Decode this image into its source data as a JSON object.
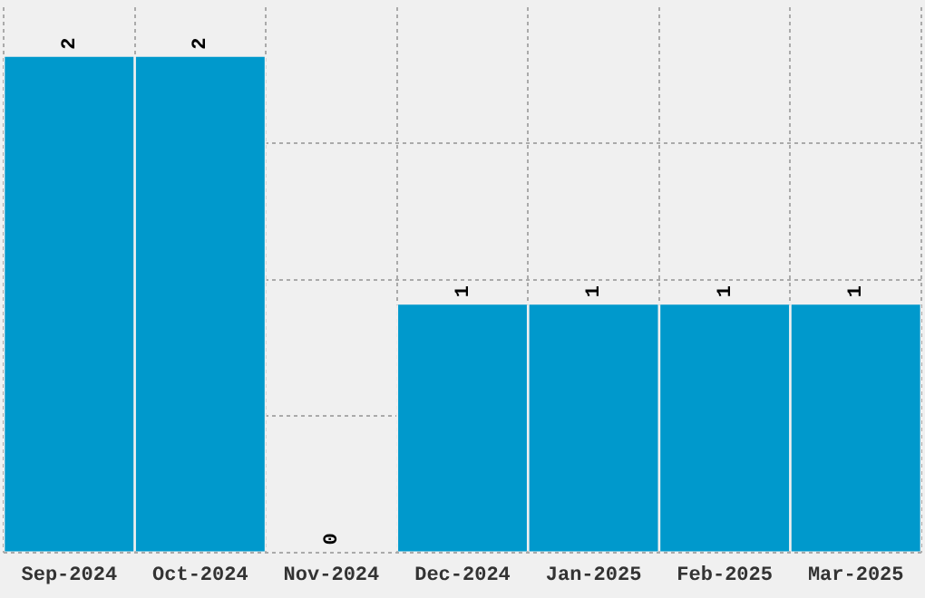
{
  "chart_data": {
    "type": "bar",
    "categories": [
      "Sep-2024",
      "Oct-2024",
      "Nov-2024",
      "Dec-2024",
      "Jan-2025",
      "Feb-2025",
      "Mar-2025"
    ],
    "values": [
      2,
      2,
      0,
      1,
      1,
      1,
      1
    ],
    "color": "#0099cc",
    "data_labels": true,
    "grid": true,
    "tick_labels": "x"
  }
}
